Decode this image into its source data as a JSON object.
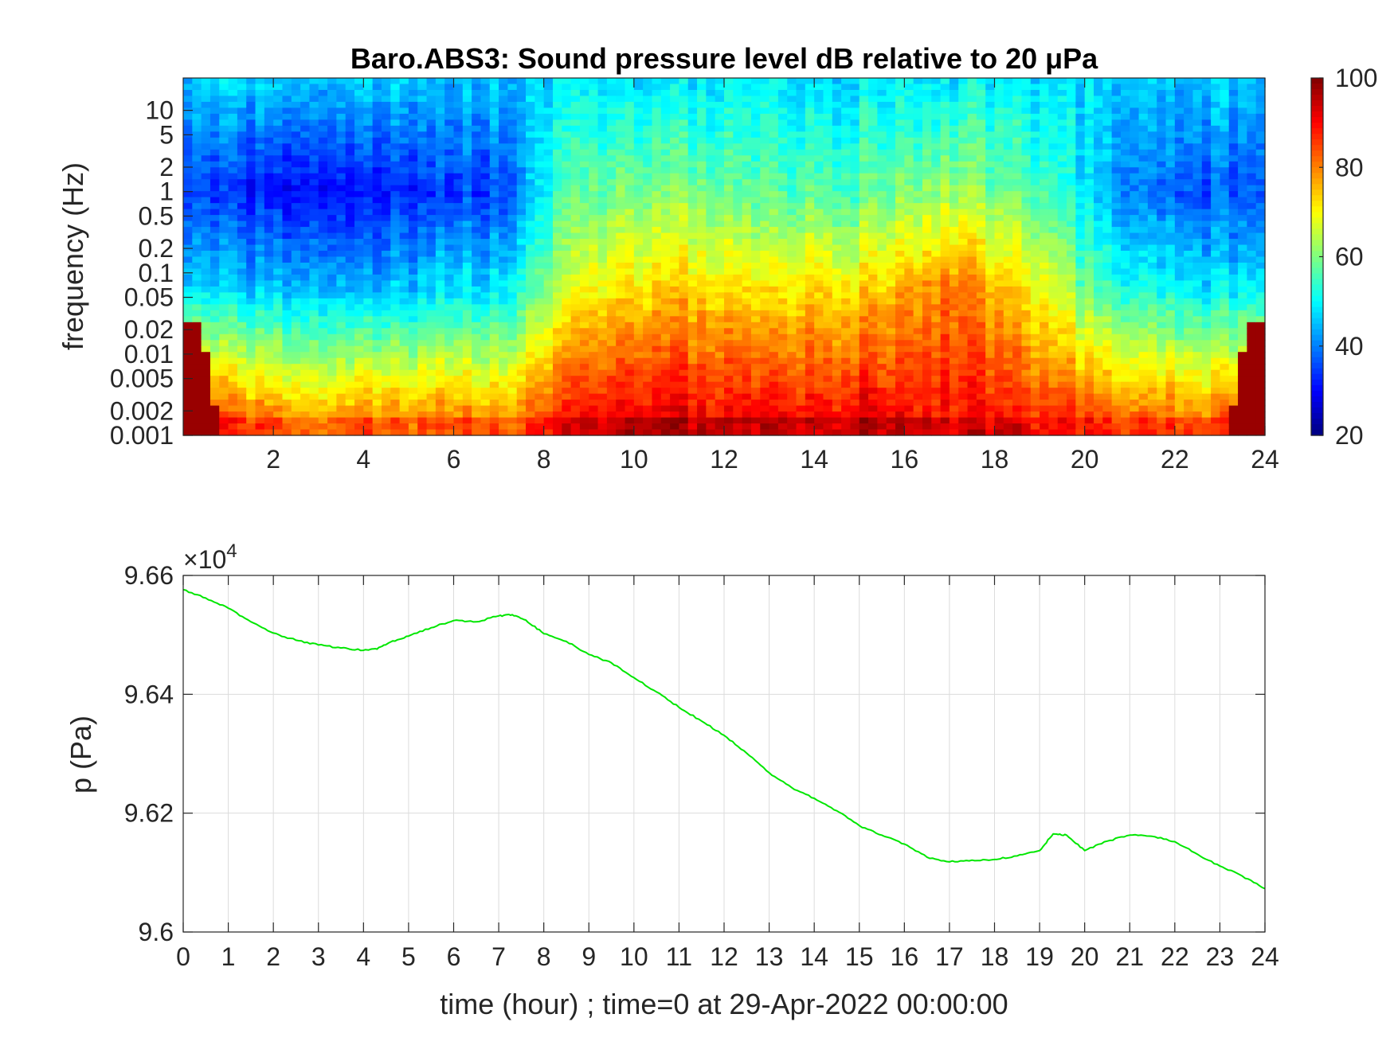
{
  "chart_data": [
    {
      "type": "heatmap",
      "title": "Baro.ABS3: Sound pressure level dB relative to 20 μPa",
      "xlabel": "",
      "ylabel": "frequency (Hz)",
      "x_ticks": [
        2,
        4,
        6,
        8,
        10,
        12,
        14,
        16,
        18,
        20,
        22,
        24
      ],
      "x_tick_labels": [
        "2",
        "4",
        "6",
        "8",
        "10",
        "12",
        "14",
        "16",
        "18",
        "20",
        "22",
        "24"
      ],
      "xlim": [
        0,
        24
      ],
      "y_scale": "log",
      "y_ticks": [
        0.001,
        0.002,
        0.005,
        0.01,
        0.02,
        0.05,
        0.1,
        0.2,
        0.5,
        1,
        2,
        5,
        10
      ],
      "y_tick_labels": [
        "0.001",
        "0.002",
        "0.005",
        "0.01",
        "0.02",
        "0.05",
        "0.1",
        "0.2",
        "0.5",
        "1",
        "2",
        "5",
        "10"
      ],
      "ylim": [
        0.001,
        25
      ],
      "colormap": "jet",
      "colorbar": {
        "ticks": [
          20,
          40,
          60,
          80,
          100
        ],
        "tick_labels": [
          "20",
          "40",
          "60",
          "80",
          "100"
        ],
        "clim": [
          20,
          100
        ]
      },
      "level_profile": {
        "hours": [
          0,
          1,
          2,
          3,
          4,
          5,
          6,
          7,
          8,
          9,
          10,
          11,
          12,
          13,
          14,
          15,
          16,
          17,
          18,
          19,
          20,
          21,
          22,
          23,
          24
        ],
        "low_freq_band_db": [
          90,
          82,
          80,
          78,
          80,
          78,
          82,
          78,
          84,
          90,
          92,
          92,
          90,
          90,
          90,
          92,
          90,
          90,
          88,
          86,
          84,
          82,
          82,
          80,
          90
        ],
        "mid_freq_band_db": [
          48,
          46,
          45,
          46,
          44,
          45,
          50,
          48,
          60,
          70,
          72,
          74,
          72,
          70,
          74,
          72,
          76,
          82,
          74,
          70,
          58,
          52,
          50,
          48,
          50
        ],
        "one_hz_band_db": [
          36,
          32,
          30,
          32,
          30,
          32,
          36,
          34,
          50,
          58,
          60,
          60,
          58,
          56,
          58,
          56,
          60,
          64,
          58,
          56,
          48,
          40,
          38,
          36,
          38
        ],
        "top_band_db": [
          46,
          46,
          46,
          46,
          46,
          46,
          46,
          46,
          47,
          48,
          48,
          48,
          48,
          48,
          48,
          48,
          48,
          49,
          48,
          48,
          47,
          46,
          46,
          46,
          46
        ]
      }
    },
    {
      "type": "line",
      "title": "",
      "xlabel": "time (hour) ; time=0 at 29-Apr-2022 00:00:00",
      "ylabel": "p (Pa)",
      "x_ticks": [
        0,
        1,
        2,
        3,
        4,
        5,
        6,
        7,
        8,
        9,
        10,
        11,
        12,
        13,
        14,
        15,
        16,
        17,
        18,
        19,
        20,
        21,
        22,
        23,
        24
      ],
      "x_tick_labels": [
        "0",
        "1",
        "2",
        "3",
        "4",
        "5",
        "6",
        "7",
        "8",
        "9",
        "10",
        "11",
        "12",
        "13",
        "14",
        "15",
        "16",
        "17",
        "18",
        "19",
        "20",
        "21",
        "22",
        "23",
        "24"
      ],
      "xlim": [
        0,
        24
      ],
      "y_ticks": [
        9.6,
        9.62,
        9.64,
        9.66
      ],
      "y_tick_labels": [
        "9.6",
        "9.62",
        "9.64",
        "9.66"
      ],
      "ylim": [
        9.6,
        9.66
      ],
      "y_multiplier": {
        "prefix": "×10",
        "exponent": "4"
      },
      "grid": true,
      "series": [
        {
          "color": "#00e600",
          "x": [
            0,
            0.5,
            1,
            1.5,
            2,
            2.5,
            3,
            3.5,
            4,
            4.3,
            4.6,
            5,
            5.5,
            6,
            6.5,
            7,
            7.3,
            7.6,
            8,
            8.5,
            9,
            9.5,
            10,
            10.5,
            11,
            11.5,
            12,
            12.5,
            13,
            13.5,
            14,
            14.5,
            15,
            15.5,
            16,
            16.5,
            17,
            17.5,
            18,
            18.5,
            19,
            19.3,
            19.6,
            20,
            20.5,
            21,
            21.5,
            22,
            22.5,
            23,
            23.5,
            24
          ],
          "y": [
            9.6576,
            9.6562,
            9.6545,
            9.6522,
            9.6503,
            9.6491,
            9.6483,
            9.6478,
            9.6474,
            9.6476,
            9.6488,
            9.6498,
            9.6512,
            9.6524,
            9.6522,
            9.6532,
            9.6534,
            9.6525,
            9.6502,
            9.6489,
            9.6467,
            9.6453,
            9.6428,
            9.6404,
            9.6378,
            9.6355,
            9.6331,
            9.6301,
            9.6268,
            9.6243,
            9.6225,
            9.6204,
            9.6179,
            9.6163,
            9.6148,
            9.6126,
            9.6118,
            9.6121,
            9.6122,
            9.6128,
            9.6137,
            9.6165,
            9.6163,
            9.6137,
            9.6153,
            9.6163,
            9.6161,
            9.6152,
            9.6131,
            9.6111,
            9.6094,
            9.6073
          ]
        }
      ]
    }
  ]
}
